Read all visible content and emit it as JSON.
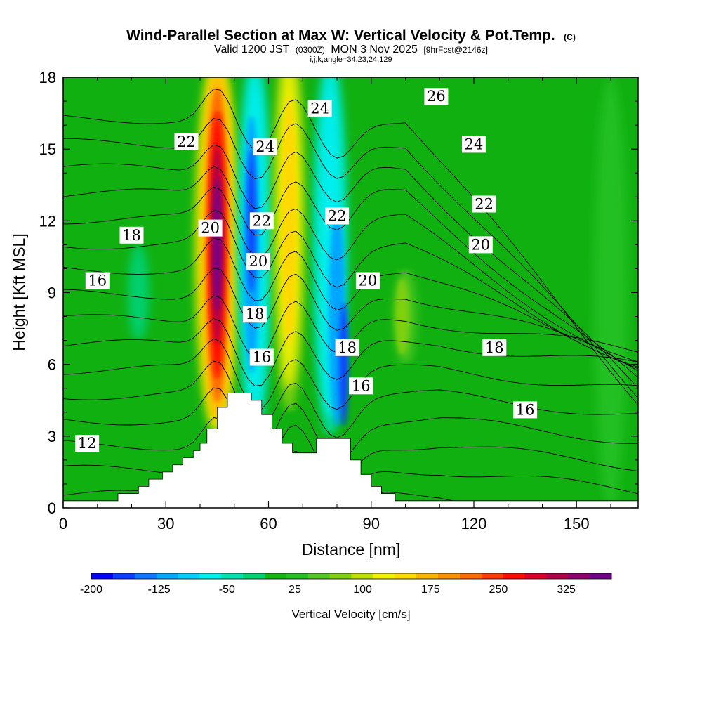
{
  "chart_data": {
    "type": "heatmap",
    "title": "Wind-Parallel Section at Max W: Vertical Velocity & Pot.Temp.",
    "title_suffix": "(C)",
    "subtitle_main_1": "Valid 1200 JST",
    "subtitle_small_1": "(0300Z)",
    "subtitle_main_2": "MON 3 Nov 2025",
    "subtitle_small_2": "[9hrFcst@2146z]",
    "subtitle_line2": "i,j,k,angle=34,23,24,129",
    "xlabel": "Distance [nm]",
    "ylabel": "Height [Kft MSL]",
    "xlim": [
      0,
      168
    ],
    "ylim": [
      0,
      18
    ],
    "x_ticks": [
      "0",
      "30",
      "60",
      "90",
      "120",
      "150"
    ],
    "y_ticks": [
      "0",
      "3",
      "6",
      "9",
      "12",
      "15",
      "18"
    ],
    "colorbar": {
      "label": "Vertical Velocity [cm/s]",
      "min": -200,
      "max": 375,
      "step": 25,
      "tick_labels": [
        "-200",
        "-125",
        "-50",
        "25",
        "100",
        "175",
        "250",
        "325"
      ],
      "tick_values": [
        -200,
        -125,
        -50,
        25,
        100,
        175,
        250,
        325
      ],
      "colors": [
        "#0000ff",
        "#0a40ff",
        "#0a78ff",
        "#00a5ff",
        "#00ccff",
        "#00eeee",
        "#00e0b0",
        "#00d070",
        "#10b810",
        "#20c020",
        "#50c820",
        "#80d010",
        "#c0e000",
        "#f0f000",
        "#ffd800",
        "#ffb400",
        "#ff9000",
        "#ff6a00",
        "#ff4000",
        "#ff1000",
        "#d8002a",
        "#b0004a",
        "#900070",
        "#70008a"
      ]
    },
    "theta_contours_C": [
      12,
      13,
      14,
      15,
      16,
      17,
      18,
      19,
      20,
      21,
      22,
      23,
      24,
      25,
      26,
      27
    ],
    "contour_labels": [
      {
        "text": "12",
        "x": 7,
        "y": 2.7
      },
      {
        "text": "16",
        "x": 10,
        "y": 9.5
      },
      {
        "text": "18",
        "x": 20,
        "y": 11.4
      },
      {
        "text": "22",
        "x": 36,
        "y": 15.3
      },
      {
        "text": "20",
        "x": 43,
        "y": 11.7
      },
      {
        "text": "24",
        "x": 59,
        "y": 15.1
      },
      {
        "text": "22",
        "x": 58,
        "y": 12.0
      },
      {
        "text": "20",
        "x": 57,
        "y": 10.3
      },
      {
        "text": "18",
        "x": 56,
        "y": 8.1
      },
      {
        "text": "16",
        "x": 58,
        "y": 6.3
      },
      {
        "text": "24",
        "x": 75,
        "y": 16.7
      },
      {
        "text": "22",
        "x": 80,
        "y": 12.2
      },
      {
        "text": "20",
        "x": 89,
        "y": 9.5
      },
      {
        "text": "18",
        "x": 83,
        "y": 6.7
      },
      {
        "text": "16",
        "x": 87,
        "y": 5.1
      },
      {
        "text": "26",
        "x": 109,
        "y": 17.2
      },
      {
        "text": "24",
        "x": 120,
        "y": 15.2
      },
      {
        "text": "22",
        "x": 123,
        "y": 12.7
      },
      {
        "text": "20",
        "x": 122,
        "y": 11.0
      },
      {
        "text": "18",
        "x": 126,
        "y": 6.7
      },
      {
        "text": "16",
        "x": 135,
        "y": 4.1
      }
    ],
    "terrain_profile": [
      [
        0,
        0.3
      ],
      [
        16,
        0.3
      ],
      [
        16,
        0.6
      ],
      [
        22,
        0.6
      ],
      [
        22,
        0.9
      ],
      [
        25,
        0.9
      ],
      [
        25,
        1.2
      ],
      [
        29,
        1.2
      ],
      [
        29,
        1.5
      ],
      [
        32,
        1.5
      ],
      [
        32,
        1.8
      ],
      [
        35,
        1.8
      ],
      [
        35,
        2.1
      ],
      [
        38,
        2.1
      ],
      [
        38,
        2.4
      ],
      [
        40,
        2.4
      ],
      [
        40,
        2.7
      ],
      [
        42,
        2.7
      ],
      [
        42,
        3.3
      ],
      [
        45,
        3.3
      ],
      [
        45,
        4.2
      ],
      [
        48,
        4.2
      ],
      [
        48,
        4.8
      ],
      [
        55,
        4.8
      ],
      [
        55,
        4.5
      ],
      [
        58,
        4.5
      ],
      [
        58,
        3.9
      ],
      [
        61,
        3.9
      ],
      [
        61,
        3.3
      ],
      [
        64,
        3.3
      ],
      [
        64,
        2.7
      ],
      [
        67,
        2.7
      ],
      [
        67,
        2.3
      ],
      [
        74,
        2.3
      ],
      [
        74,
        2.9
      ],
      [
        84,
        2.9
      ],
      [
        84,
        2.0
      ],
      [
        87,
        2.0
      ],
      [
        87,
        1.4
      ],
      [
        90,
        1.4
      ],
      [
        90,
        0.9
      ],
      [
        93,
        0.9
      ],
      [
        93,
        0.6
      ],
      [
        97,
        0.6
      ],
      [
        97,
        0.3
      ],
      [
        168,
        0.3
      ]
    ],
    "w_features": [
      {
        "sign": "updraft",
        "x_center": 45,
        "y_min": 3.5,
        "y_max": 18,
        "peak_cms": 325
      },
      {
        "sign": "downdraft",
        "x_center": 55,
        "y_min": 4.8,
        "y_max": 18,
        "peak_cms": -150
      },
      {
        "sign": "updraft",
        "x_center": 67,
        "y_min": 4.0,
        "y_max": 18,
        "peak_cms": 120
      },
      {
        "sign": "downdraft",
        "x_center": 80,
        "y_min": 3.0,
        "y_max": 18,
        "peak_cms": -175
      },
      {
        "sign": "updraft",
        "x_center": 99,
        "y_min": 6.5,
        "y_max": 9.5,
        "peak_cms": 60
      }
    ]
  }
}
